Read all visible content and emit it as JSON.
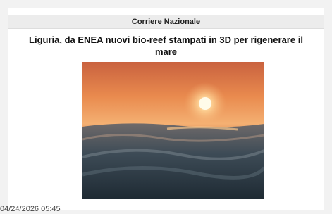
{
  "header": {
    "source": "Corriere Nazionale"
  },
  "article": {
    "title": "Liguria, da ENEA nuovi bio-reef stampati in 3D per rigenerare il mare",
    "timestamp": "04/24/2026 05:45"
  }
}
